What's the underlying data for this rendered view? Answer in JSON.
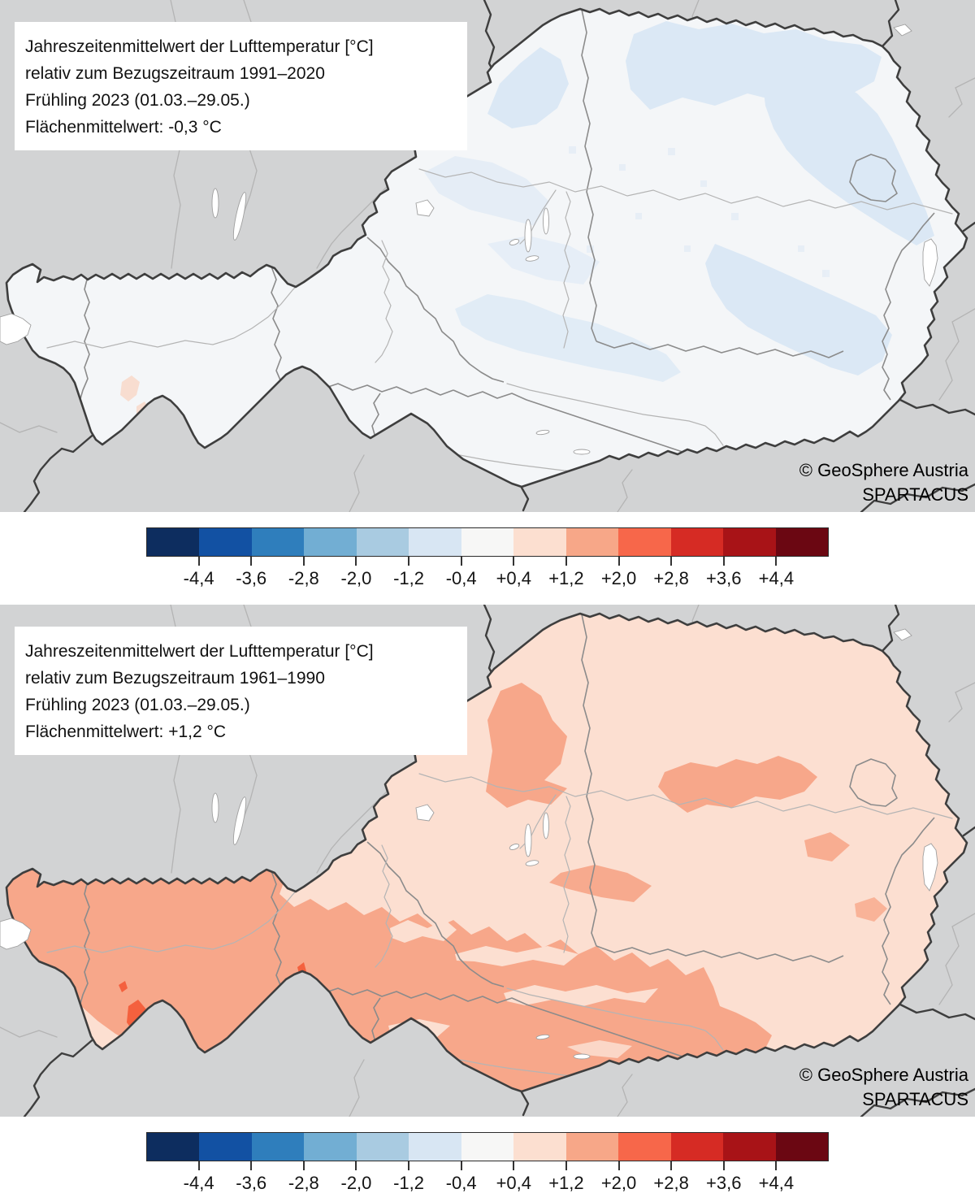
{
  "panels": [
    {
      "title_lines": [
        "Jahreszeitenmittelwert der Lufttemperatur [°C]",
        "relativ zum Bezugszeitraum 1991–2020",
        "Frühling 2023 (01.03.–29.05.)",
        "Flächenmittelwert: -0,3 °C"
      ],
      "attribution": [
        "© GeoSphere Austria",
        "SPARTACUS"
      ]
    },
    {
      "title_lines": [
        "Jahreszeitenmittelwert der Lufttemperatur [°C]",
        "relativ zum Bezugszeitraum 1961–1990",
        "Frühling 2023 (01.03.–29.05.)",
        "Flächenmittelwert: +1,2 °C"
      ],
      "attribution": [
        "© GeoSphere Austria",
        "SPARTACUS"
      ]
    }
  ],
  "colorbar": {
    "labels": [
      "-4,4",
      "-3,6",
      "-2,8",
      "-2,0",
      "-1,2",
      "-0,4",
      "+0,4",
      "+1,2",
      "+2,0",
      "+2,8",
      "+3,6",
      "+4,4"
    ],
    "colors": [
      "#0d2d5f",
      "#1251a3",
      "#2f7ebc",
      "#72aed3",
      "#a9cbe1",
      "#d8e6f3",
      "#f7f7f6",
      "#fcdfd0",
      "#f7a788",
      "#f7674a",
      "#d62b24",
      "#a81317",
      "#6b0712"
    ]
  },
  "map_colors": {
    "neighbor": "#d2d3d4",
    "base_cool": "#f4f6f8",
    "patch_cool": "#dbe8f5",
    "patch_cool_deep": "#c7dcef",
    "spot_warm_faint": "#f8d9c9",
    "base_warm": "#fcdfd1",
    "patch_warm": "#f7a78a",
    "spot_red": "#f4613e",
    "border_national": "#3e3e3e",
    "border_state": "#8b8b8b",
    "river": "#b4b4b4",
    "lake_fill": "#ffffff",
    "lake_stroke": "#9f9f9f"
  }
}
